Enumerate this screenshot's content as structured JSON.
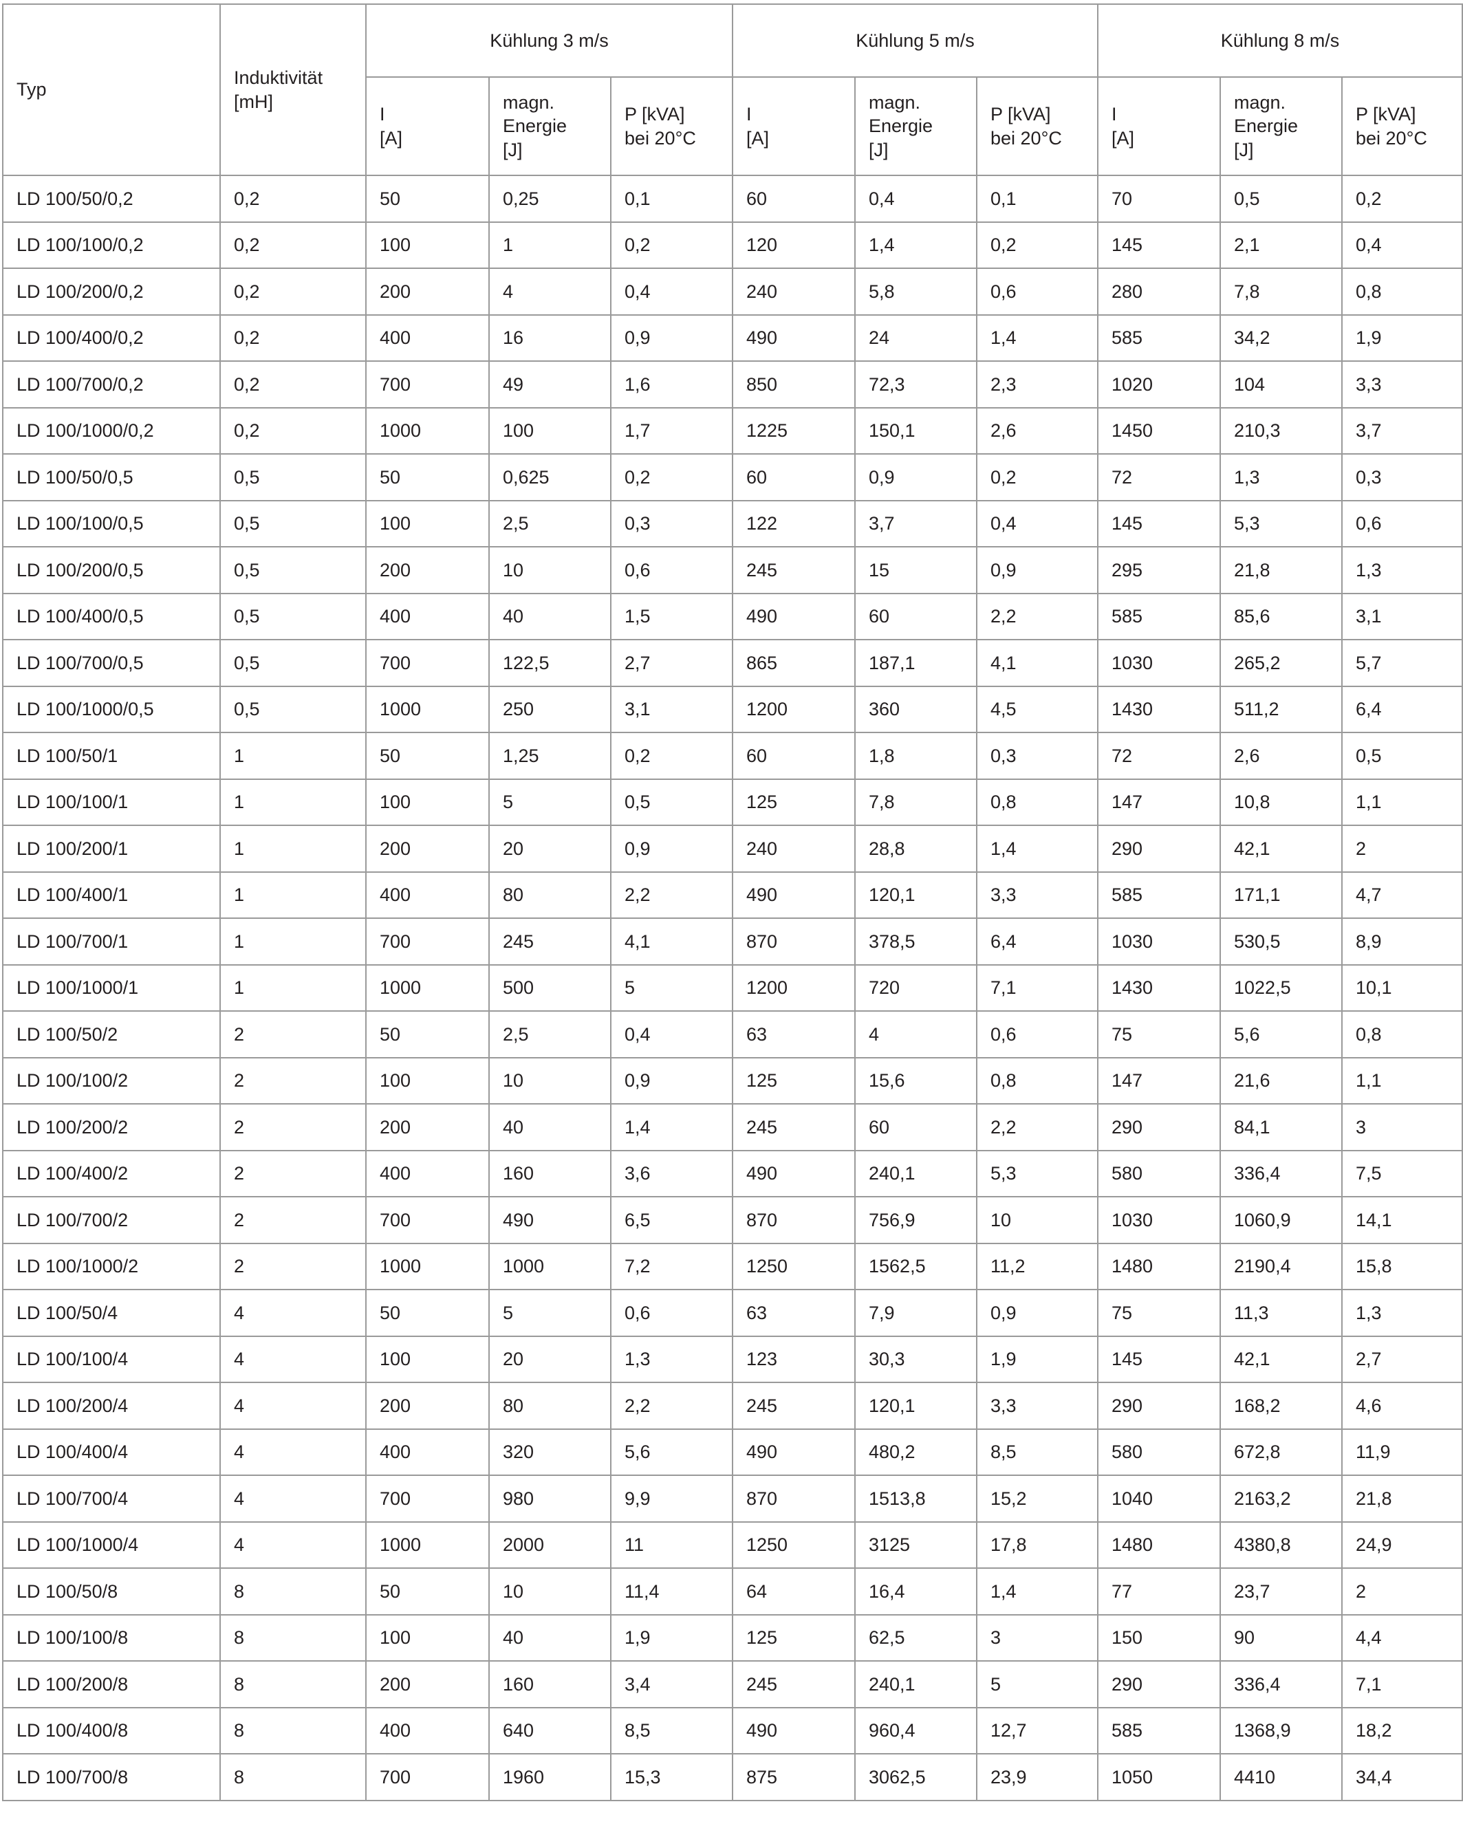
{
  "table": {
    "header": {
      "typ": "Typ",
      "inductance": "Induktivität\n[mH]",
      "groups": [
        {
          "title": "Kühlung 3 m/s",
          "columns": [
            "I\n[A]",
            "magn.\nEnergie\n[J]",
            "P [kVA]\nbei 20°C"
          ]
        },
        {
          "title": "Kühlung 5 m/s",
          "columns": [
            "I\n[A]",
            "magn.\nEnergie\n[J]",
            "P [kVA]\nbei 20°C"
          ]
        },
        {
          "title": "Kühlung 8 m/s",
          "columns": [
            "I\n[A]",
            "magn.\nEnergie\n[J]",
            "P [kVA]\nbei 20°C"
          ]
        }
      ]
    },
    "rows": [
      [
        "LD 100/50/0,2",
        "0,2",
        "50",
        "0,25",
        "0,1",
        "60",
        "0,4",
        "0,1",
        "70",
        "0,5",
        "0,2"
      ],
      [
        "LD 100/100/0,2",
        "0,2",
        "100",
        "1",
        "0,2",
        "120",
        "1,4",
        "0,2",
        "145",
        "2,1",
        "0,4"
      ],
      [
        "LD 100/200/0,2",
        "0,2",
        "200",
        "4",
        "0,4",
        "240",
        "5,8",
        "0,6",
        "280",
        "7,8",
        "0,8"
      ],
      [
        "LD 100/400/0,2",
        "0,2",
        "400",
        "16",
        "0,9",
        "490",
        "24",
        "1,4",
        "585",
        "34,2",
        "1,9"
      ],
      [
        "LD 100/700/0,2",
        "0,2",
        "700",
        "49",
        "1,6",
        "850",
        "72,3",
        "2,3",
        "1020",
        "104",
        "3,3"
      ],
      [
        "LD 100/1000/0,2",
        "0,2",
        "1000",
        "100",
        "1,7",
        "1225",
        "150,1",
        "2,6",
        "1450",
        "210,3",
        "3,7"
      ],
      [
        "LD 100/50/0,5",
        "0,5",
        "50",
        "0,625",
        "0,2",
        "60",
        "0,9",
        "0,2",
        "72",
        "1,3",
        "0,3"
      ],
      [
        "LD 100/100/0,5",
        "0,5",
        "100",
        "2,5",
        "0,3",
        "122",
        "3,7",
        "0,4",
        "145",
        "5,3",
        "0,6"
      ],
      [
        "LD 100/200/0,5",
        "0,5",
        "200",
        "10",
        "0,6",
        "245",
        "15",
        "0,9",
        "295",
        "21,8",
        "1,3"
      ],
      [
        "LD 100/400/0,5",
        "0,5",
        "400",
        "40",
        "1,5",
        "490",
        "60",
        "2,2",
        "585",
        "85,6",
        "3,1"
      ],
      [
        "LD 100/700/0,5",
        "0,5",
        "700",
        "122,5",
        "2,7",
        "865",
        "187,1",
        "4,1",
        "1030",
        "265,2",
        "5,7"
      ],
      [
        "LD 100/1000/0,5",
        "0,5",
        "1000",
        "250",
        "3,1",
        "1200",
        "360",
        "4,5",
        "1430",
        "511,2",
        "6,4"
      ],
      [
        "LD 100/50/1",
        "1",
        "50",
        "1,25",
        "0,2",
        "60",
        "1,8",
        "0,3",
        "72",
        "2,6",
        "0,5"
      ],
      [
        "LD 100/100/1",
        "1",
        "100",
        "5",
        "0,5",
        "125",
        "7,8",
        "0,8",
        "147",
        "10,8",
        "1,1"
      ],
      [
        "LD 100/200/1",
        "1",
        "200",
        "20",
        "0,9",
        "240",
        "28,8",
        "1,4",
        "290",
        "42,1",
        "2"
      ],
      [
        "LD 100/400/1",
        "1",
        "400",
        "80",
        "2,2",
        "490",
        "120,1",
        "3,3",
        "585",
        "171,1",
        "4,7"
      ],
      [
        "LD 100/700/1",
        "1",
        "700",
        "245",
        "4,1",
        "870",
        "378,5",
        "6,4",
        "1030",
        "530,5",
        "8,9"
      ],
      [
        "LD 100/1000/1",
        "1",
        "1000",
        "500",
        "5",
        "1200",
        "720",
        "7,1",
        "1430",
        "1022,5",
        "10,1"
      ],
      [
        "LD 100/50/2",
        "2",
        "50",
        "2,5",
        "0,4",
        "63",
        "4",
        "0,6",
        "75",
        "5,6",
        "0,8"
      ],
      [
        "LD 100/100/2",
        "2",
        "100",
        "10",
        "0,9",
        "125",
        "15,6",
        "0,8",
        "147",
        "21,6",
        "1,1"
      ],
      [
        "LD 100/200/2",
        "2",
        "200",
        "40",
        "1,4",
        "245",
        "60",
        "2,2",
        "290",
        "84,1",
        "3"
      ],
      [
        "LD 100/400/2",
        "2",
        "400",
        "160",
        "3,6",
        "490",
        "240,1",
        "5,3",
        "580",
        "336,4",
        "7,5"
      ],
      [
        "LD 100/700/2",
        "2",
        "700",
        "490",
        "6,5",
        "870",
        "756,9",
        "10",
        "1030",
        "1060,9",
        "14,1"
      ],
      [
        "LD 100/1000/2",
        "2",
        "1000",
        "1000",
        "7,2",
        "1250",
        "1562,5",
        "11,2",
        "1480",
        "2190,4",
        "15,8"
      ],
      [
        "LD 100/50/4",
        "4",
        "50",
        "5",
        "0,6",
        "63",
        "7,9",
        "0,9",
        "75",
        "11,3",
        "1,3"
      ],
      [
        "LD 100/100/4",
        "4",
        "100",
        "20",
        "1,3",
        "123",
        "30,3",
        "1,9",
        "145",
        "42,1",
        "2,7"
      ],
      [
        "LD 100/200/4",
        "4",
        "200",
        "80",
        "2,2",
        "245",
        "120,1",
        "3,3",
        "290",
        "168,2",
        "4,6"
      ],
      [
        "LD 100/400/4",
        "4",
        "400",
        "320",
        "5,6",
        "490",
        "480,2",
        "8,5",
        "580",
        "672,8",
        "11,9"
      ],
      [
        "LD 100/700/4",
        "4",
        "700",
        "980",
        "9,9",
        "870",
        "1513,8",
        "15,2",
        "1040",
        "2163,2",
        "21,8"
      ],
      [
        "LD 100/1000/4",
        "4",
        "1000",
        "2000",
        "11",
        "1250",
        "3125",
        "17,8",
        "1480",
        "4380,8",
        "24,9"
      ],
      [
        "LD 100/50/8",
        "8",
        "50",
        "10",
        "11,4",
        "64",
        "16,4",
        "1,4",
        "77",
        "23,7",
        "2"
      ],
      [
        "LD 100/100/8",
        "8",
        "100",
        "40",
        "1,9",
        "125",
        "62,5",
        "3",
        "150",
        "90",
        "4,4"
      ],
      [
        "LD 100/200/8",
        "8",
        "200",
        "160",
        "3,4",
        "245",
        "240,1",
        "5",
        "290",
        "336,4",
        "7,1"
      ],
      [
        "LD 100/400/8",
        "8",
        "400",
        "640",
        "8,5",
        "490",
        "960,4",
        "12,7",
        "585",
        "1368,9",
        "18,2"
      ],
      [
        "LD 100/700/8",
        "8",
        "700",
        "1960",
        "15,3",
        "875",
        "3062,5",
        "23,9",
        "1050",
        "4410",
        "34,4"
      ]
    ]
  }
}
